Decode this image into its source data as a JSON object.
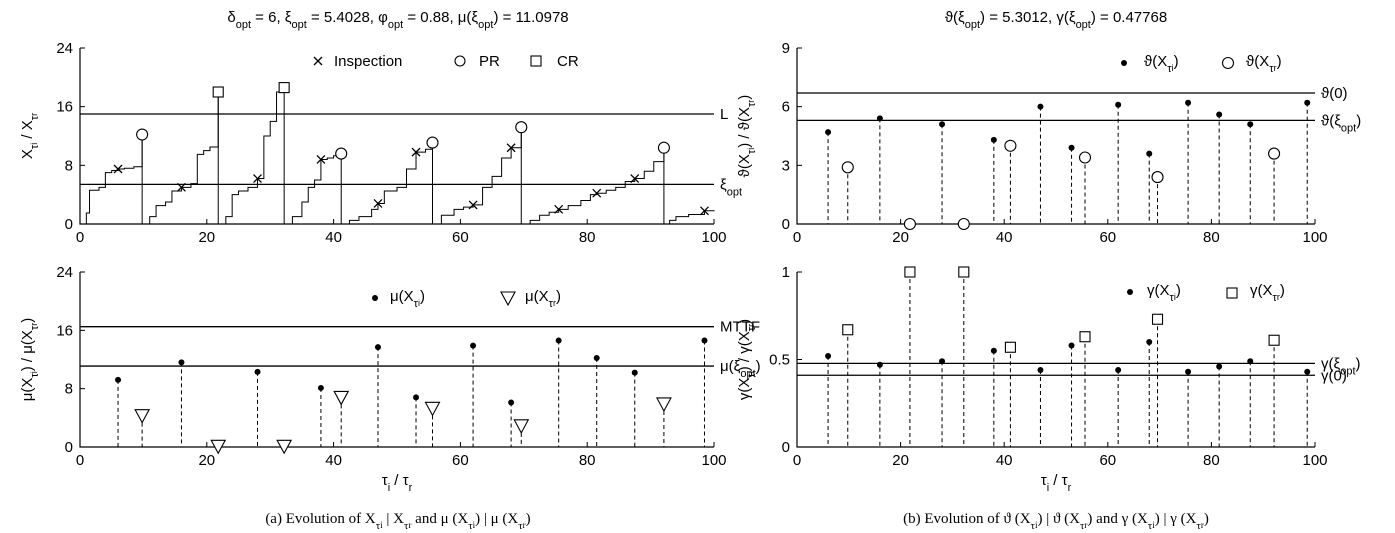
{
  "panels_text": {
    "a": {
      "title": "δopt = 6, ξopt = 5.4028, φopt = 0.88, μ(ξopt) = 11.0978",
      "caption": "(a) Evolution of Xτi | Xτr and μ (Xτi) | μ (Xτr)"
    },
    "b": {
      "title": "ϑ(ξopt) = 5.3012, γ(ξopt) = 0.47768",
      "caption": "(b) Evolution of ϑ (Xτi) | ϑ (Xτr) and γ (Xτi) | γ (Xτr)"
    }
  },
  "chart_data": [
    {
      "id": "a-top",
      "type": "line",
      "ylabel": "Xτi / Xτr",
      "xlim": [
        0,
        100
      ],
      "ylim": [
        0,
        24
      ],
      "xticks": [
        0,
        20,
        40,
        60,
        80,
        100
      ],
      "yticks": [
        0,
        8,
        16,
        24
      ],
      "legend": [
        "Inspection",
        "PR",
        "CR"
      ],
      "legend_position": "top-right",
      "hlines": [
        {
          "label": "L",
          "y": 15
        },
        {
          "label": "ξopt",
          "y": 5.4
        }
      ],
      "inspections": [
        [
          6,
          7.5
        ],
        [
          16,
          5
        ],
        [
          28,
          6.2
        ],
        [
          38,
          8.8
        ],
        [
          47,
          2.8
        ],
        [
          53,
          9.8
        ],
        [
          62,
          2.6
        ],
        [
          68,
          10.4
        ],
        [
          75.5,
          2
        ],
        [
          81.5,
          4.2
        ],
        [
          87.5,
          6.2
        ],
        [
          98.5,
          1.8
        ]
      ],
      "preventive_replacements": [
        [
          9.8,
          12.2
        ],
        [
          41.2,
          9.6
        ],
        [
          55.6,
          11.1
        ],
        [
          69.6,
          13.2
        ],
        [
          92.1,
          10.4
        ]
      ],
      "corrective_replacements": [
        [
          21.8,
          18
        ],
        [
          32.2,
          18.6
        ]
      ],
      "degradation_paths": [
        [
          [
            0,
            0
          ],
          [
            1,
            1.5
          ],
          [
            1.5,
            4.6
          ],
          [
            3,
            5
          ],
          [
            4,
            7
          ],
          [
            5,
            7.3
          ],
          [
            6,
            7.5
          ],
          [
            7,
            7.6
          ],
          [
            8.5,
            7.8
          ],
          [
            9.8,
            12.2
          ]
        ],
        [
          [
            9.8,
            0
          ],
          [
            11,
            1
          ],
          [
            12,
            2.5
          ],
          [
            13.5,
            3
          ],
          [
            14.5,
            4.5
          ],
          [
            16,
            5
          ],
          [
            17.5,
            5.5
          ],
          [
            18.5,
            9.5
          ],
          [
            19.5,
            10
          ],
          [
            20.5,
            10.5
          ],
          [
            21.8,
            18
          ]
        ],
        [
          [
            21.8,
            0
          ],
          [
            23,
            1
          ],
          [
            24,
            4
          ],
          [
            25,
            4.5
          ],
          [
            26.5,
            5
          ],
          [
            28,
            6.2
          ],
          [
            29,
            12
          ],
          [
            30,
            14
          ],
          [
            31,
            18
          ],
          [
            32.2,
            18.6
          ]
        ],
        [
          [
            32.2,
            0
          ],
          [
            33.5,
            1
          ],
          [
            35,
            3
          ],
          [
            36,
            5
          ],
          [
            37,
            6
          ],
          [
            38,
            8.8
          ],
          [
            39,
            9
          ],
          [
            40,
            9.3
          ],
          [
            41.2,
            9.6
          ]
        ],
        [
          [
            41.2,
            0
          ],
          [
            42.5,
            0.5
          ],
          [
            44,
            1
          ],
          [
            46,
            2
          ],
          [
            47,
            2.8
          ],
          [
            48,
            4.5
          ],
          [
            50,
            5
          ],
          [
            51.5,
            7.5
          ],
          [
            53,
            9.8
          ],
          [
            54.5,
            10.2
          ],
          [
            55.6,
            11.1
          ]
        ],
        [
          [
            55.6,
            0
          ],
          [
            57,
            1.2
          ],
          [
            59,
            2
          ],
          [
            60.5,
            2.3
          ],
          [
            62,
            2.6
          ],
          [
            63.5,
            5
          ],
          [
            65,
            6.5
          ],
          [
            66.5,
            9
          ],
          [
            68,
            10.4
          ],
          [
            69.6,
            13.2
          ]
        ],
        [
          [
            69.6,
            0
          ],
          [
            71,
            0.5
          ],
          [
            72.5,
            1.2
          ],
          [
            74,
            1.6
          ],
          [
            75.5,
            2
          ],
          [
            77,
            2.5
          ],
          [
            79,
            3.2
          ],
          [
            80.5,
            4
          ],
          [
            81.5,
            4.2
          ],
          [
            83,
            4.6
          ],
          [
            84.5,
            5
          ],
          [
            86,
            5.8
          ],
          [
            87.5,
            6.2
          ],
          [
            89,
            7.2
          ],
          [
            90.5,
            8.5
          ],
          [
            92.1,
            10.4
          ]
        ],
        [
          [
            92.1,
            0
          ],
          [
            93,
            0.5
          ],
          [
            94,
            1
          ],
          [
            96,
            1.3
          ],
          [
            98.5,
            1.8
          ],
          [
            100,
            1.9
          ]
        ]
      ]
    },
    {
      "id": "a-bottom",
      "type": "stem",
      "xlabel": "τi / τr",
      "ylabel": "μ(Xτi) / μ(Xτr)",
      "xlim": [
        0,
        100
      ],
      "ylim": [
        0,
        24
      ],
      "xticks": [
        0,
        20,
        40,
        60,
        80,
        100
      ],
      "yticks": [
        0,
        8,
        16,
        24
      ],
      "legend": [
        "μ(Xτi)",
        "μ(Xτr)"
      ],
      "legend_position": "top-right",
      "hlines": [
        {
          "label": "MTTF",
          "y": 16.5
        },
        {
          "label": "μ(ξopt)",
          "y": 11.1
        }
      ],
      "inspections": [
        [
          6,
          9.2
        ],
        [
          16,
          11.6
        ],
        [
          28,
          10.3
        ],
        [
          38,
          8.1
        ],
        [
          47,
          13.7
        ],
        [
          53,
          6.8
        ],
        [
          62,
          13.9
        ],
        [
          68,
          6.1
        ],
        [
          75.5,
          14.6
        ],
        [
          81.5,
          12.2
        ],
        [
          87.5,
          10.2
        ],
        [
          98.5,
          14.6
        ]
      ],
      "replacements": [
        [
          9.8,
          4.3
        ],
        [
          21.8,
          0.1
        ],
        [
          32.2,
          0.1
        ],
        [
          41.2,
          6.8
        ],
        [
          55.6,
          5.3
        ],
        [
          69.6,
          2.9
        ],
        [
          92.1,
          5.9
        ]
      ]
    },
    {
      "id": "b-top",
      "type": "stem",
      "ylabel": "ϑ(Xτi) / ϑ(Xτr)",
      "xlim": [
        0,
        100
      ],
      "ylim": [
        0,
        9
      ],
      "xticks": [
        0,
        20,
        40,
        60,
        80,
        100
      ],
      "yticks": [
        0,
        3,
        6,
        9
      ],
      "legend": [
        "ϑ(Xτi)",
        "ϑ(Xτr)"
      ],
      "legend_position": "top-right",
      "hlines": [
        {
          "label": "ϑ(0)",
          "y": 6.7
        },
        {
          "label": "ϑ(ξopt)",
          "y": 5.3
        }
      ],
      "inspections": [
        [
          6,
          4.7
        ],
        [
          16,
          5.4
        ],
        [
          28,
          5.1
        ],
        [
          38,
          4.3
        ],
        [
          47,
          6
        ],
        [
          53,
          3.9
        ],
        [
          62,
          6.1
        ],
        [
          68,
          3.6
        ],
        [
          75.5,
          6.2
        ],
        [
          81.5,
          5.6
        ],
        [
          87.5,
          5.1
        ],
        [
          98.5,
          6.2
        ]
      ],
      "replacements": [
        [
          9.8,
          2.9
        ],
        [
          21.8,
          0
        ],
        [
          32.2,
          0
        ],
        [
          41.2,
          4
        ],
        [
          55.6,
          3.4
        ],
        [
          69.6,
          2.4
        ],
        [
          92.1,
          3.6
        ]
      ]
    },
    {
      "id": "b-bottom",
      "type": "stem",
      "xlabel": "τi / τr",
      "ylabel": "γ(Xτi) / γ(Xτr)",
      "xlim": [
        0,
        100
      ],
      "ylim": [
        0,
        1
      ],
      "xticks": [
        0,
        20,
        40,
        60,
        80,
        100
      ],
      "yticks": [
        0,
        0.5,
        1
      ],
      "legend": [
        "γ(Xτi)",
        "γ(Xτr)"
      ],
      "legend_position": "top-right",
      "hlines": [
        {
          "label": "γ(ξopt)",
          "y": 0.478
        },
        {
          "label": "γ(0)",
          "y": 0.41
        }
      ],
      "inspections": [
        [
          6,
          0.52
        ],
        [
          16,
          0.47
        ],
        [
          28,
          0.49
        ],
        [
          38,
          0.55
        ],
        [
          47,
          0.44
        ],
        [
          53,
          0.58
        ],
        [
          62,
          0.44
        ],
        [
          68,
          0.6
        ],
        [
          75.5,
          0.43
        ],
        [
          81.5,
          0.46
        ],
        [
          87.5,
          0.49
        ],
        [
          98.5,
          0.43
        ]
      ],
      "replacements": [
        [
          9.8,
          0.67
        ],
        [
          21.8,
          1
        ],
        [
          32.2,
          1
        ],
        [
          41.2,
          0.57
        ],
        [
          55.6,
          0.63
        ],
        [
          69.6,
          0.73
        ],
        [
          92.1,
          0.61
        ]
      ]
    }
  ]
}
